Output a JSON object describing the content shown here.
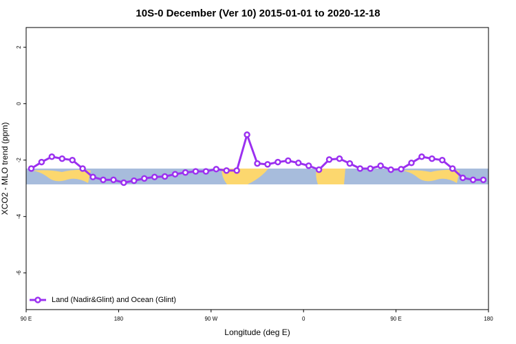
{
  "chart_data": {
    "type": "line",
    "title": "10S-0 December (Ver 10)   2015-01-01 to 2020-12-18",
    "x_label": "Longitude (deg E)",
    "y_label": "XCO2 - MLO trend (ppm)",
    "x": [
      95,
      105,
      115,
      125,
      135,
      145,
      155,
      165,
      175,
      185,
      195,
      205,
      215,
      225,
      235,
      245,
      255,
      265,
      275,
      285,
      295,
      305,
      315,
      325,
      335,
      345,
      355,
      365,
      375,
      385,
      395,
      405,
      415,
      425,
      435,
      445,
      455,
      465,
      475,
      485,
      495,
      505,
      515,
      525,
      535
    ],
    "series": [
      {
        "name": "Land (Nadir&Glint) and Ocean (Glint)",
        "color": "#9b30f0",
        "values": [
          -2.3,
          -2.07,
          -1.88,
          -1.95,
          -2.0,
          -2.3,
          -2.6,
          -2.7,
          -2.7,
          -2.8,
          -2.73,
          -2.65,
          -2.6,
          -2.58,
          -2.5,
          -2.44,
          -2.4,
          -2.4,
          -2.32,
          -2.37,
          -2.37,
          -1.1,
          -2.12,
          -2.15,
          -2.07,
          -2.02,
          -2.1,
          -2.2,
          -2.34,
          -1.98,
          -1.95,
          -2.12,
          -2.3,
          -2.3,
          -2.2,
          -2.34,
          -2.32,
          -2.1,
          -1.88,
          -1.95,
          -2.0,
          -2.3,
          -2.63,
          -2.7,
          -2.7
        ]
      }
    ],
    "xlim": [
      90,
      540
    ],
    "xticks": [
      {
        "value": 90,
        "label": "90 E"
      },
      {
        "value": 180,
        "label": "180"
      },
      {
        "value": 270,
        "label": "90 W"
      },
      {
        "value": 360,
        "label": "0"
      },
      {
        "value": 450,
        "label": "90 E"
      },
      {
        "value": 540,
        "label": "180"
      }
    ],
    "ylim": [
      -7.3,
      2.7
    ],
    "yticks": [
      2,
      0,
      -2,
      -4,
      -6
    ],
    "legend": "bottomleft"
  }
}
